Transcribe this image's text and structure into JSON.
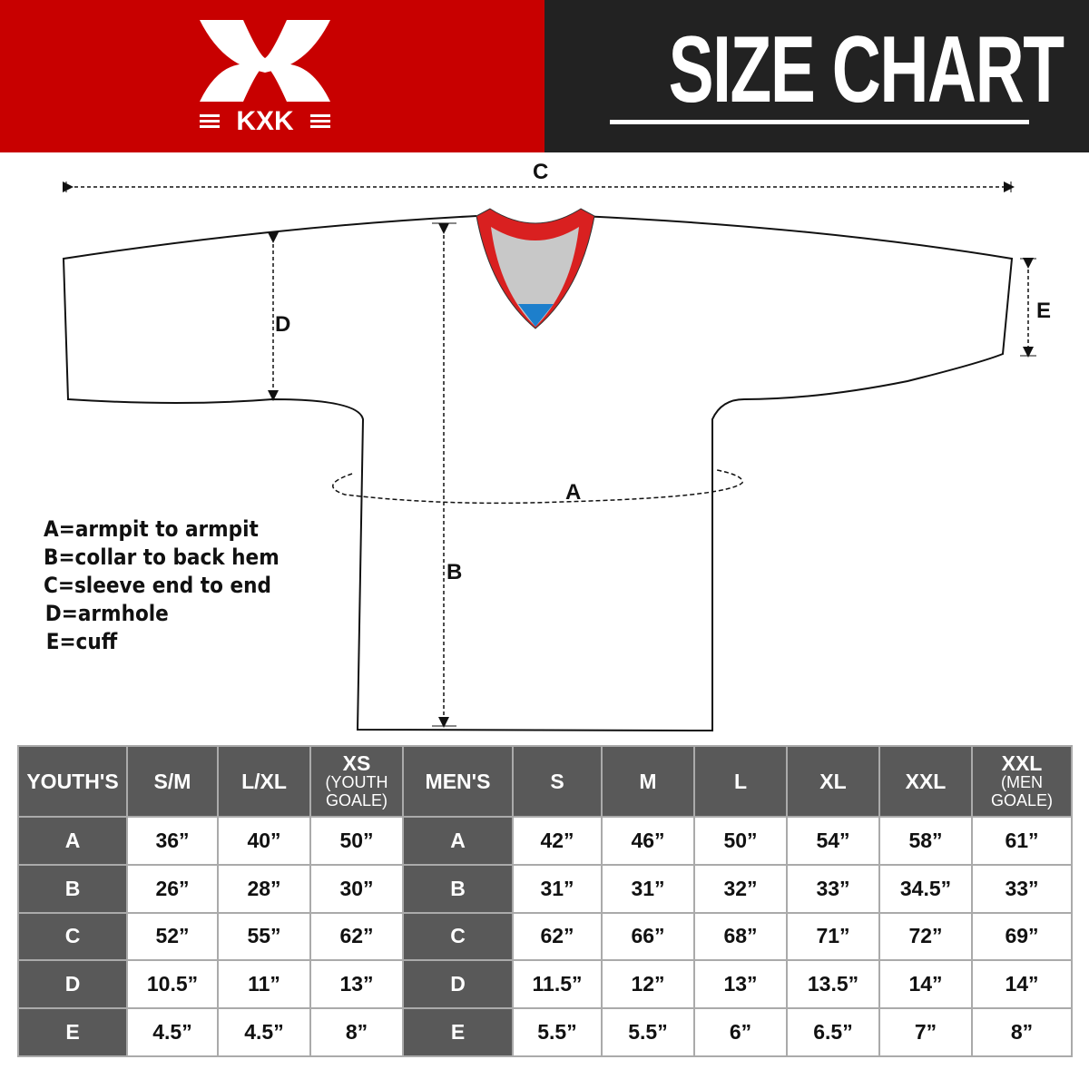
{
  "header": {
    "brand": "KXK",
    "title": "SIZE CHART",
    "brand_color": "#c80000",
    "dark_color": "#222222"
  },
  "diagram": {
    "labels": {
      "a": "A",
      "b": "B",
      "c": "C",
      "d": "D",
      "e": "E"
    },
    "legend": [
      "A=armpit to armpit",
      "B=collar to back hem",
      "C=sleeve end to end",
      "D=armhole",
      "E=cuff"
    ]
  },
  "table": {
    "headers": [
      {
        "main": "YOUTH'S",
        "sub": ""
      },
      {
        "main": "S/M",
        "sub": ""
      },
      {
        "main": "L/XL",
        "sub": ""
      },
      {
        "main": "XS",
        "sub": "(YOUTH GOALE)"
      },
      {
        "main": "MEN'S",
        "sub": ""
      },
      {
        "main": "S",
        "sub": ""
      },
      {
        "main": "M",
        "sub": ""
      },
      {
        "main": "L",
        "sub": ""
      },
      {
        "main": "XL",
        "sub": ""
      },
      {
        "main": "XXL",
        "sub": ""
      },
      {
        "main": "XXL",
        "sub": "(MEN GOALE)"
      }
    ],
    "rows": [
      {
        "youth_key": "A",
        "youth": [
          "36”",
          "40”",
          "50”"
        ],
        "men_key": "A",
        "men": [
          "42”",
          "46”",
          "50”",
          "54”",
          "58”",
          "61”"
        ]
      },
      {
        "youth_key": "B",
        "youth": [
          "26”",
          "28”",
          "30”"
        ],
        "men_key": "B",
        "men": [
          "31”",
          "31”",
          "32”",
          "33”",
          "34.5”",
          "33”"
        ]
      },
      {
        "youth_key": "C",
        "youth": [
          "52”",
          "55”",
          "62”"
        ],
        "men_key": "C",
        "men": [
          "62”",
          "66”",
          "68”",
          "71”",
          "72”",
          "69”"
        ]
      },
      {
        "youth_key": "D",
        "youth": [
          "10.5”",
          "11”",
          "13”"
        ],
        "men_key": "D",
        "men": [
          "11.5”",
          "12”",
          "13”",
          "13.5”",
          "14”",
          "14”"
        ]
      },
      {
        "youth_key": "E",
        "youth": [
          "4.5”",
          "4.5”",
          "8”"
        ],
        "men_key": "E",
        "men": [
          "5.5”",
          "5.5”",
          "6”",
          "6.5”",
          "7”",
          "8”"
        ]
      }
    ]
  }
}
